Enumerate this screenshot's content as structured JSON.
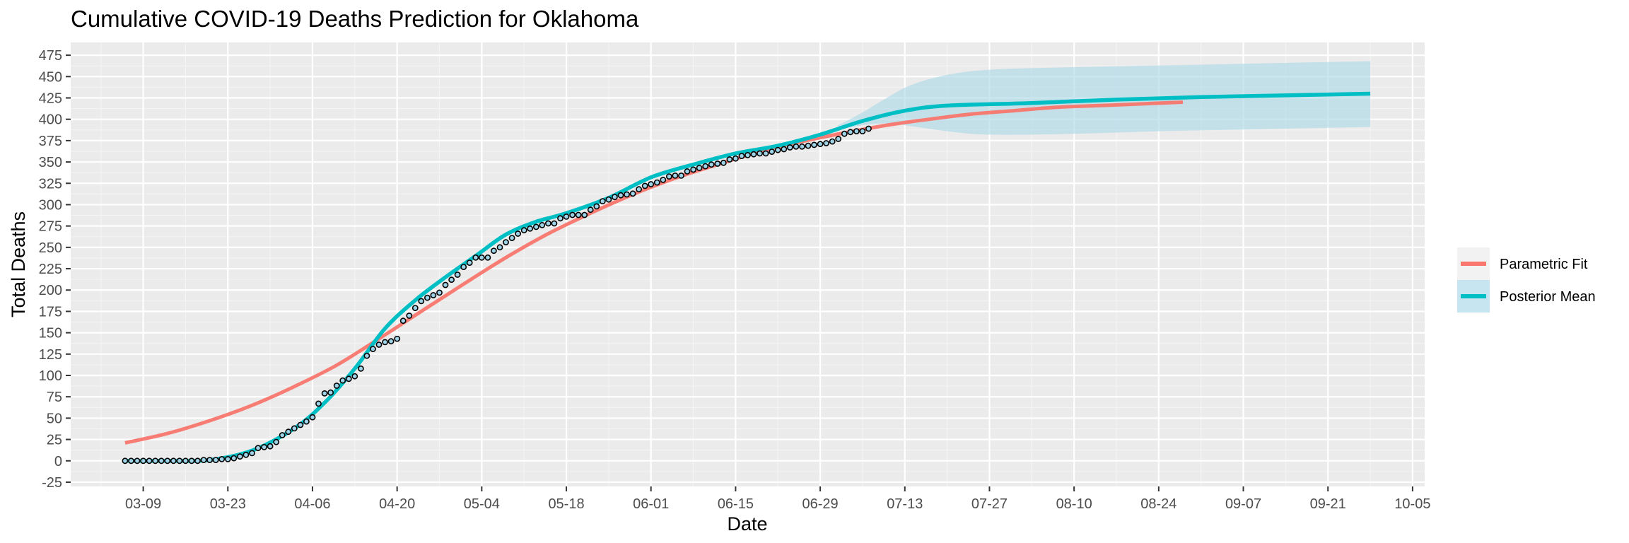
{
  "chart_data": {
    "type": "line",
    "title": "Cumulative COVID-19 Deaths Prediction for Oklahoma",
    "xlabel": "Date",
    "ylabel": "Total Deaths",
    "x_tick_labels": [
      "03-09",
      "03-23",
      "04-06",
      "04-20",
      "05-04",
      "05-18",
      "06-01",
      "06-15",
      "06-29",
      "07-13",
      "07-27",
      "08-10",
      "08-24",
      "09-07",
      "09-21",
      "10-05"
    ],
    "y_ticks": [
      -25,
      0,
      25,
      50,
      75,
      100,
      125,
      150,
      175,
      200,
      225,
      250,
      275,
      300,
      325,
      350,
      375,
      400,
      425,
      450,
      475
    ],
    "ylim": [
      -30,
      490
    ],
    "xlim": [
      "2020-02-26",
      "2020-10-07"
    ],
    "grid": true,
    "legend_position": "right",
    "series": [
      {
        "name": "Parametric Fit",
        "color": "#F8766D",
        "x": [
          "2020-03-06",
          "2020-03-13",
          "2020-03-20",
          "2020-03-27",
          "2020-04-03",
          "2020-04-10",
          "2020-04-17",
          "2020-04-24",
          "2020-05-01",
          "2020-05-08",
          "2020-05-15",
          "2020-05-22",
          "2020-05-29",
          "2020-06-05",
          "2020-06-12",
          "2020-06-19",
          "2020-06-26",
          "2020-07-03",
          "2020-07-10",
          "2020-07-17",
          "2020-07-24",
          "2020-07-31",
          "2020-08-07",
          "2020-08-14",
          "2020-08-21",
          "2020-08-28"
        ],
        "values": [
          21,
          32,
          47,
          65,
          87,
          112,
          143,
          175,
          207,
          238,
          266,
          290,
          312,
          331,
          347,
          362,
          374,
          384,
          393,
          400,
          406,
          410,
          414,
          416,
          418,
          420
        ]
      },
      {
        "name": "Posterior Mean",
        "color": "#00BFC4",
        "x": [
          "2020-03-06",
          "2020-03-13",
          "2020-03-20",
          "2020-03-27",
          "2020-04-03",
          "2020-04-08",
          "2020-04-13",
          "2020-04-18",
          "2020-04-23",
          "2020-04-28",
          "2020-05-03",
          "2020-05-08",
          "2020-05-13",
          "2020-05-18",
          "2020-05-25",
          "2020-06-01",
          "2020-06-08",
          "2020-06-15",
          "2020-06-22",
          "2020-06-29",
          "2020-07-06",
          "2020-07-13",
          "2020-07-20",
          "2020-08-03",
          "2020-08-17",
          "2020-08-31",
          "2020-09-14",
          "2020-09-28"
        ],
        "values": [
          0,
          0,
          1,
          12,
          38,
          68,
          108,
          155,
          188,
          215,
          240,
          265,
          280,
          290,
          308,
          332,
          347,
          360,
          369,
          382,
          398,
          410,
          416,
          419,
          423,
          426,
          428,
          430
        ],
        "ribbon_x": [
          "2020-07-02",
          "2020-07-06",
          "2020-07-10",
          "2020-07-14",
          "2020-07-20",
          "2020-07-27",
          "2020-08-10",
          "2020-08-24",
          "2020-09-07",
          "2020-09-21",
          "2020-09-28"
        ],
        "ribbon_lower": [
          388,
          393,
          395,
          392,
          386,
          382,
          383,
          386,
          388,
          390,
          391
        ],
        "ribbon_upper": [
          393,
          408,
          425,
          440,
          452,
          458,
          461,
          463,
          465,
          467,
          468
        ]
      }
    ],
    "observed_points": {
      "start": "2020-03-06",
      "values": [
        0,
        0,
        0,
        0,
        0,
        0,
        0,
        0,
        0,
        0,
        0,
        0,
        0,
        1,
        1,
        1,
        2,
        2,
        3,
        5,
        7,
        9,
        15,
        16,
        17,
        22,
        30,
        34,
        38,
        42,
        46,
        51,
        67,
        79,
        80,
        88,
        94,
        96,
        99,
        108,
        123,
        131,
        136,
        139,
        140,
        143,
        164,
        170,
        179,
        187,
        191,
        194,
        197,
        206,
        212,
        218,
        227,
        232,
        238,
        238,
        238,
        246,
        250,
        256,
        261,
        266,
        270,
        272,
        274,
        276,
        278,
        278,
        284,
        286,
        288,
        288,
        288,
        294,
        298,
        304,
        306,
        309,
        311,
        312,
        313,
        318,
        322,
        324,
        326,
        329,
        333,
        334,
        334,
        339,
        341,
        343,
        345,
        347,
        348,
        349,
        353,
        354,
        357,
        358,
        359,
        360,
        360,
        362,
        364,
        365,
        367,
        368,
        368,
        369,
        370,
        371,
        372,
        374,
        377,
        383,
        385,
        386,
        386,
        389
      ]
    }
  }
}
